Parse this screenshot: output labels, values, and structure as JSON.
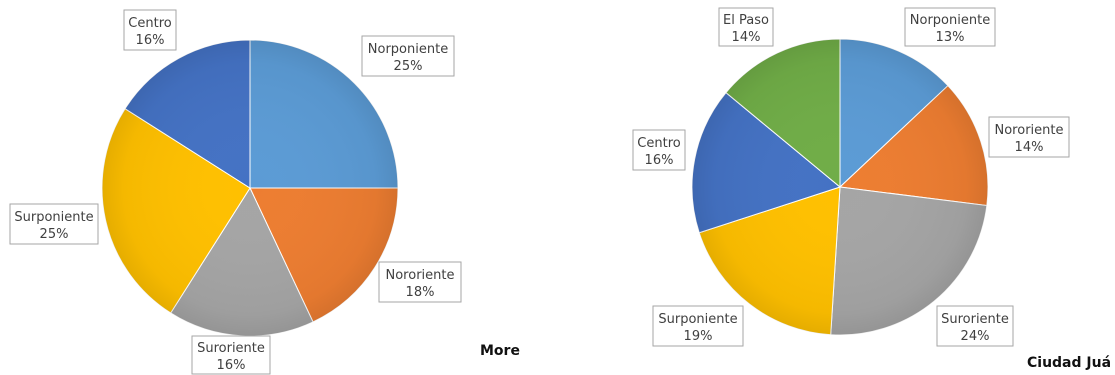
{
  "chart_data": [
    {
      "type": "pie",
      "title": "",
      "caption": "More",
      "slices": [
        {
          "name": "Norponiente",
          "value": 25,
          "label": "25%",
          "color": "#5b9bd5"
        },
        {
          "name": "Nororiente",
          "value": 18,
          "label": "18%",
          "color": "#ed7d31"
        },
        {
          "name": "Suroriente",
          "value": 16,
          "label": "16%",
          "color": "#a5a5a5"
        },
        {
          "name": "Surponiente",
          "value": 25,
          "label": "25%",
          "color": "#ffc000"
        },
        {
          "name": "Centro",
          "value": 16,
          "label": "16%",
          "color": "#4472c4"
        }
      ]
    },
    {
      "type": "pie",
      "title": "",
      "caption": "Ciudad Juá",
      "slices": [
        {
          "name": "Norponiente",
          "value": 13,
          "label": "13%",
          "color": "#5b9bd5"
        },
        {
          "name": "Nororiente",
          "value": 14,
          "label": "14%",
          "color": "#ed7d31"
        },
        {
          "name": "Suroriente",
          "value": 24,
          "label": "24%",
          "color": "#a5a5a5"
        },
        {
          "name": "Surponiente",
          "value": 19,
          "label": "19%",
          "color": "#ffc000"
        },
        {
          "name": "Centro",
          "value": 16,
          "label": "16%",
          "color": "#4472c4"
        },
        {
          "name": "El Paso",
          "value": 14,
          "label": "14%",
          "color": "#70ad47"
        }
      ]
    }
  ]
}
